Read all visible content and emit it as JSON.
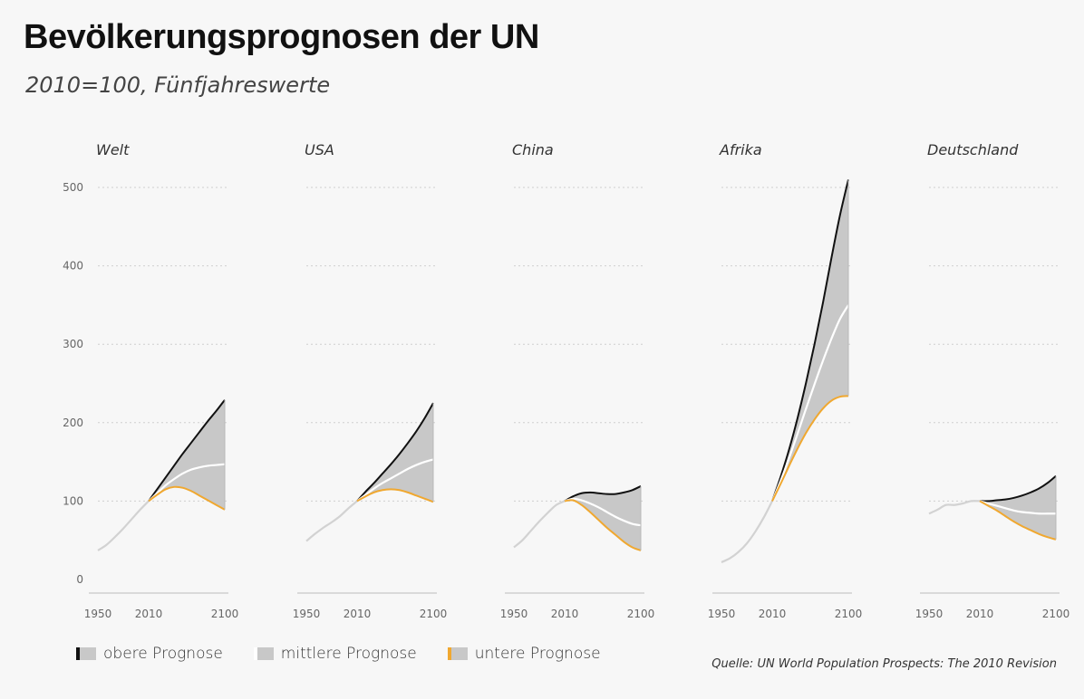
{
  "title": "Bevölkerungsprognosen der UN",
  "subtitle": "2010=100, Fünfjahreswerte",
  "legend": {
    "upper": "obere Prognose",
    "middle": "mittlere Prognose",
    "lower": "untere Prognose"
  },
  "source": "Quelle: UN World Population Prospects: The 2010 Revision",
  "colors": {
    "upper": "#111111",
    "middle": "#ffffff",
    "lower": "#f0a830",
    "band": "#c8c8c8",
    "history": "#d2d2d2"
  },
  "chart_data": {
    "type": "line",
    "y_ticks": [
      0,
      100,
      200,
      300,
      400,
      500
    ],
    "ylim": [
      0,
      500
    ],
    "x_ticks": [
      1950,
      2010,
      2100
    ],
    "xlim": [
      1950,
      2100
    ],
    "grid": true,
    "legend_position": "bottom-left",
    "panels": [
      {
        "name": "Welt",
        "history": {
          "x": [
            1950,
            1960,
            1970,
            1980,
            1990,
            2000,
            2010
          ],
          "y": [
            37,
            44,
            54,
            65,
            77,
            89,
            100
          ]
        },
        "projection_x": [
          2010,
          2020,
          2030,
          2040,
          2050,
          2060,
          2070,
          2080,
          2090,
          2100
        ],
        "upper": [
          100,
          115,
          130,
          145,
          160,
          174,
          188,
          202,
          215,
          229
        ],
        "middle": [
          100,
          110,
          120,
          128,
          135,
          140,
          143,
          145,
          146,
          147
        ],
        "lower": [
          100,
          108,
          115,
          118,
          117,
          113,
          107,
          101,
          95,
          89
        ]
      },
      {
        "name": "USA",
        "history": {
          "x": [
            1950,
            1960,
            1970,
            1980,
            1990,
            2000,
            2010
          ],
          "y": [
            49,
            58,
            66,
            73,
            81,
            91,
            100
          ]
        },
        "projection_x": [
          2010,
          2020,
          2030,
          2040,
          2050,
          2060,
          2070,
          2080,
          2090,
          2100
        ],
        "upper": [
          100,
          112,
          123,
          135,
          147,
          160,
          174,
          189,
          206,
          225
        ],
        "middle": [
          100,
          108,
          116,
          123,
          129,
          135,
          141,
          146,
          150,
          153
        ],
        "lower": [
          100,
          106,
          111,
          114,
          115,
          114,
          111,
          107,
          103,
          99
        ]
      },
      {
        "name": "China",
        "history": {
          "x": [
            1950,
            1960,
            1970,
            1980,
            1990,
            2000,
            2010
          ],
          "y": [
            41,
            50,
            62,
            74,
            85,
            95,
            100
          ]
        },
        "projection_x": [
          2010,
          2020,
          2030,
          2040,
          2050,
          2060,
          2070,
          2080,
          2090,
          2100
        ],
        "upper": [
          100,
          106,
          110,
          111,
          110,
          109,
          109,
          111,
          114,
          119
        ],
        "middle": [
          100,
          103,
          101,
          97,
          92,
          86,
          80,
          75,
          71,
          69
        ],
        "lower": [
          100,
          101,
          95,
          86,
          76,
          66,
          57,
          48,
          41,
          37
        ]
      },
      {
        "name": "Afrika",
        "history": {
          "x": [
            1950,
            1960,
            1970,
            1980,
            1990,
            2000,
            2010
          ],
          "y": [
            22,
            27,
            35,
            46,
            61,
            79,
            100
          ]
        },
        "projection_x": [
          2010,
          2020,
          2030,
          2040,
          2050,
          2060,
          2070,
          2080,
          2090,
          2100
        ],
        "upper": [
          100,
          131,
          166,
          206,
          251,
          300,
          353,
          410,
          464,
          510
        ],
        "middle": [
          100,
          126,
          155,
          186,
          218,
          249,
          279,
          307,
          332,
          350
        ],
        "lower": [
          100,
          122,
          145,
          167,
          187,
          204,
          218,
          228,
          233,
          234
        ]
      },
      {
        "name": "Deutschland",
        "history": {
          "x": [
            1950,
            1960,
            1970,
            1980,
            1990,
            2000,
            2010
          ],
          "y": [
            84,
            89,
            95,
            95,
            97,
            100,
            100
          ]
        },
        "projection_x": [
          2010,
          2020,
          2030,
          2040,
          2050,
          2060,
          2070,
          2080,
          2090,
          2100
        ],
        "upper": [
          100,
          100,
          101,
          102,
          104,
          107,
          111,
          116,
          123,
          132
        ],
        "middle": [
          100,
          97,
          94,
          91,
          88,
          86,
          85,
          84,
          84,
          84
        ],
        "lower": [
          100,
          94,
          88,
          81,
          74,
          68,
          63,
          58,
          54,
          51
        ]
      }
    ]
  }
}
